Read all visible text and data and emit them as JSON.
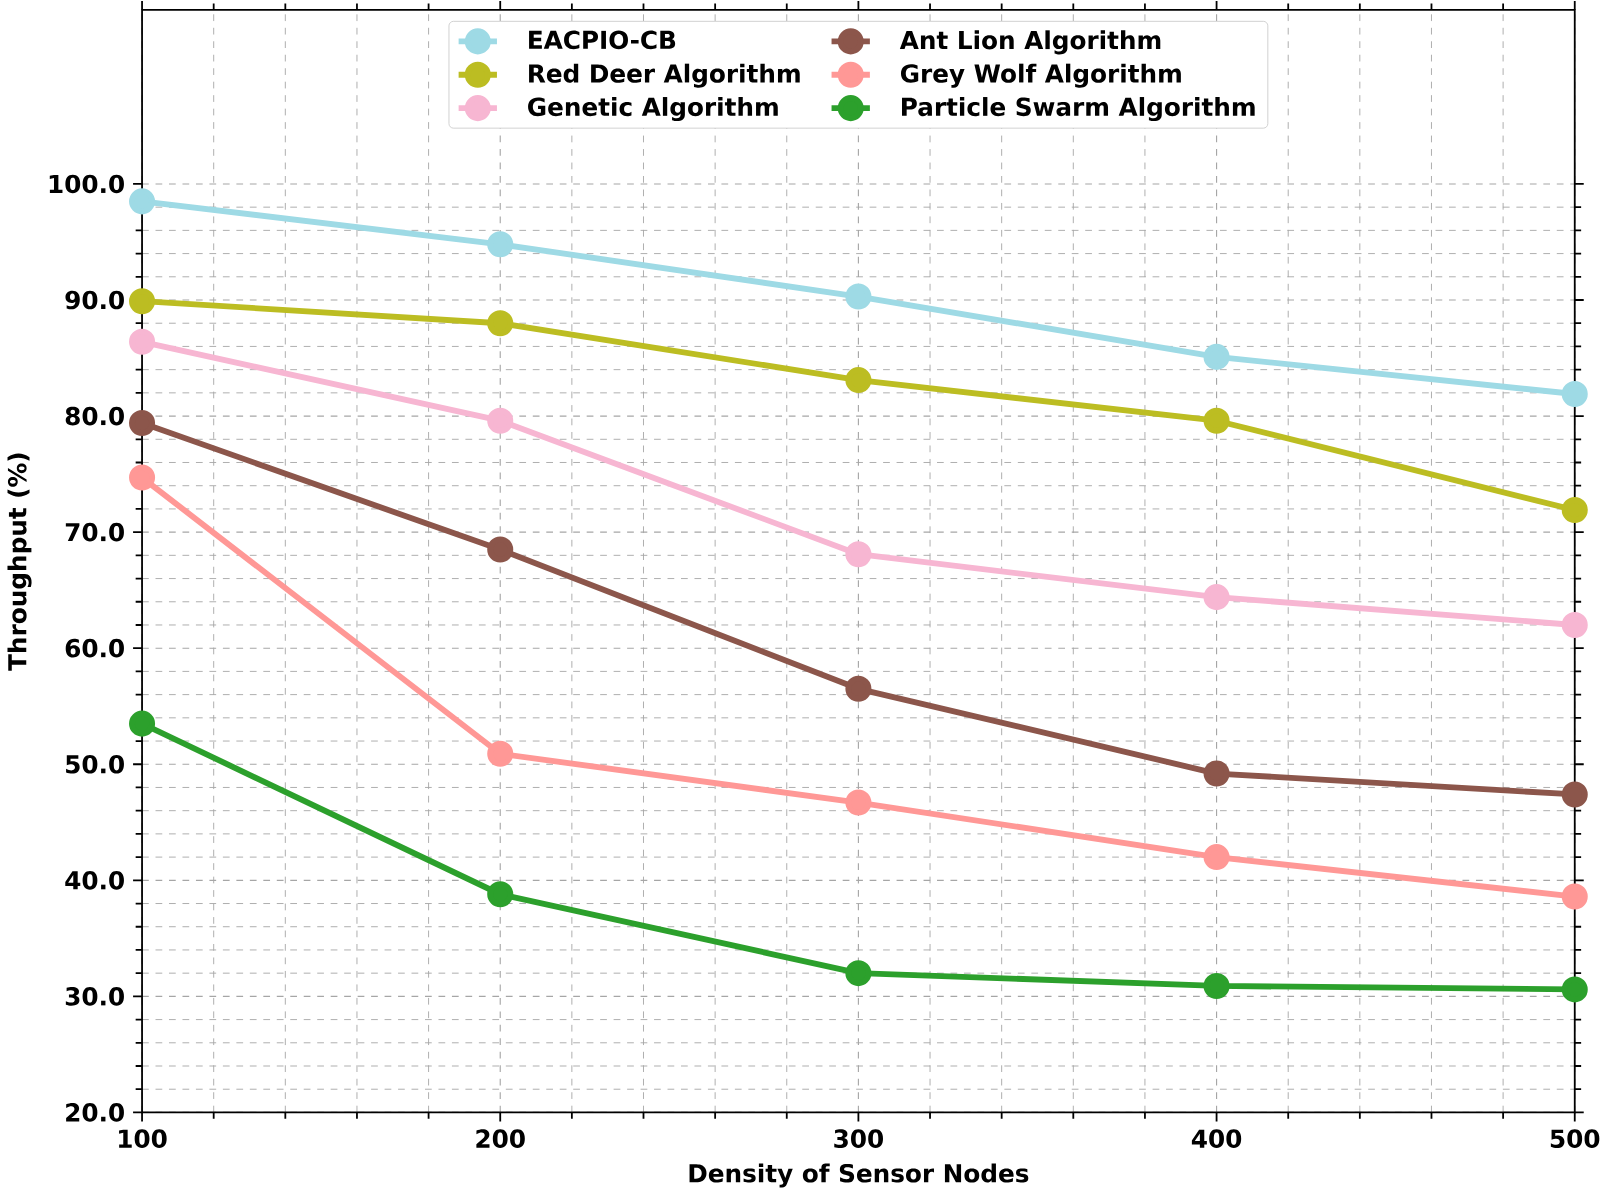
{
  "chart_data": {
    "type": "line",
    "xlabel": "Density of Sensor Nodes",
    "ylabel": "Throughput (%)",
    "x": [
      100,
      200,
      300,
      400,
      500
    ],
    "series": [
      {
        "name": "EACPIO-CB",
        "color": "#9edae5",
        "values": [
          98.5,
          94.8,
          90.3,
          85.1,
          81.9
        ]
      },
      {
        "name": "Red Deer Algorithm",
        "color": "#bcbd22",
        "values": [
          89.9,
          88.0,
          83.1,
          79.6,
          71.9
        ]
      },
      {
        "name": "Genetic Algorithm",
        "color": "#f7b6d2",
        "values": [
          86.4,
          79.6,
          68.1,
          64.4,
          62.0
        ]
      },
      {
        "name": "Ant Lion Algorithm",
        "color": "#8c564b",
        "values": [
          79.4,
          68.5,
          56.5,
          49.2,
          47.4
        ]
      },
      {
        "name": "Grey Wolf Algorithm",
        "color": "#ff9896",
        "values": [
          74.7,
          50.9,
          46.7,
          42.0,
          38.6
        ]
      },
      {
        "name": "Particle Swarm Algorithm",
        "color": "#2ca02c",
        "values": [
          53.5,
          38.8,
          32.0,
          30.9,
          30.6
        ]
      }
    ],
    "xlim": [
      100,
      500
    ],
    "xticks": [
      100,
      200,
      300,
      400,
      500
    ],
    "ylim": [
      20,
      115
    ],
    "yticks": [
      {
        "value": 20,
        "label": "20.0"
      },
      {
        "value": 30,
        "label": "30.0"
      },
      {
        "value": 40,
        "label": "40.0"
      },
      {
        "value": 50,
        "label": "50.0"
      },
      {
        "value": 60,
        "label": "60.0"
      },
      {
        "value": 70,
        "label": "70.0"
      },
      {
        "value": 80,
        "label": "80.0"
      },
      {
        "value": 90,
        "label": "90.0"
      },
      {
        "value": 100,
        "label": "100.0"
      }
    ],
    "grid": true,
    "legend": "top",
    "marker": "circle",
    "line_style": "solid"
  }
}
